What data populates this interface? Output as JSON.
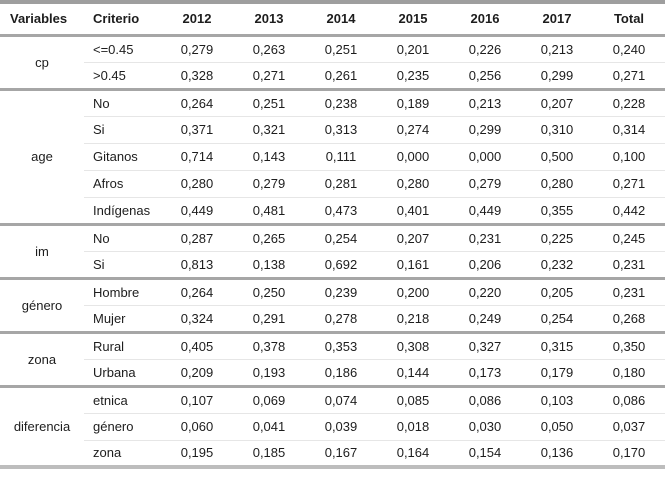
{
  "chart_data": {
    "type": "table",
    "title": "",
    "columns": [
      "Variables",
      "Criterio",
      "2012",
      "2013",
      "2014",
      "2015",
      "2016",
      "2017",
      "Total"
    ],
    "decimal_style": "comma",
    "groups": [
      {
        "variable": "cp",
        "rows": [
          {
            "criterio": "<=0.45",
            "values": [
              "0,279",
              "0,263",
              "0,251",
              "0,201",
              "0,226",
              "0,213",
              "0,240"
            ]
          },
          {
            "criterio": ">0.45",
            "values": [
              "0,328",
              "0,271",
              "0,261",
              "0,235",
              "0,256",
              "0,299",
              "0,271"
            ]
          }
        ]
      },
      {
        "variable": "age",
        "rows": [
          {
            "criterio": "No",
            "values": [
              "0,264",
              "0,251",
              "0,238",
              "0,189",
              "0,213",
              "0,207",
              "0,228"
            ]
          },
          {
            "criterio": "Si",
            "values": [
              "0,371",
              "0,321",
              "0,313",
              "0,274",
              "0,299",
              "0,310",
              "0,314"
            ]
          },
          {
            "criterio": "Gitanos",
            "values": [
              "0,714",
              "0,143",
              "0,111",
              "0,000",
              "0,000",
              "0,500",
              "0,100"
            ]
          },
          {
            "criterio": "Afros",
            "values": [
              "0,280",
              "0,279",
              "0,281",
              "0,280",
              "0,279",
              "0,280",
              "0,271"
            ]
          },
          {
            "criterio": "Indígenas",
            "values": [
              "0,449",
              "0,481",
              "0,473",
              "0,401",
              "0,449",
              "0,355",
              "0,442"
            ]
          }
        ]
      },
      {
        "variable": "im",
        "rows": [
          {
            "criterio": "No",
            "values": [
              "0,287",
              "0,265",
              "0,254",
              "0,207",
              "0,231",
              "0,225",
              "0,245"
            ]
          },
          {
            "criterio": "Si",
            "values": [
              "0,813",
              "0,138",
              "0,692",
              "0,161",
              "0,206",
              "0,232",
              "0,231"
            ]
          }
        ]
      },
      {
        "variable": "género",
        "rows": [
          {
            "criterio": "Hombre",
            "values": [
              "0,264",
              "0,250",
              "0,239",
              "0,200",
              "0,220",
              "0,205",
              "0,231"
            ]
          },
          {
            "criterio": "Mujer",
            "values": [
              "0,324",
              "0,291",
              "0,278",
              "0,218",
              "0,249",
              "0,254",
              "0,268"
            ]
          }
        ]
      },
      {
        "variable": "zona",
        "rows": [
          {
            "criterio": "Rural",
            "values": [
              "0,405",
              "0,378",
              "0,353",
              "0,308",
              "0,327",
              "0,315",
              "0,350"
            ]
          },
          {
            "criterio": "Urbana",
            "values": [
              "0,209",
              "0,193",
              "0,186",
              "0,144",
              "0,173",
              "0,179",
              "0,180"
            ]
          }
        ]
      },
      {
        "variable": "diferencia",
        "rows": [
          {
            "criterio": "etnica",
            "values": [
              "0,107",
              "0,069",
              "0,074",
              "0,085",
              "0,086",
              "0,103",
              "0,086"
            ]
          },
          {
            "criterio": "género",
            "values": [
              "0,060",
              "0,041",
              "0,039",
              "0,018",
              "0,030",
              "0,050",
              "0,037"
            ]
          },
          {
            "criterio": "zona",
            "values": [
              "0,195",
              "0,185",
              "0,167",
              "0,164",
              "0,154",
              "0,136",
              "0,170"
            ]
          }
        ]
      }
    ]
  }
}
